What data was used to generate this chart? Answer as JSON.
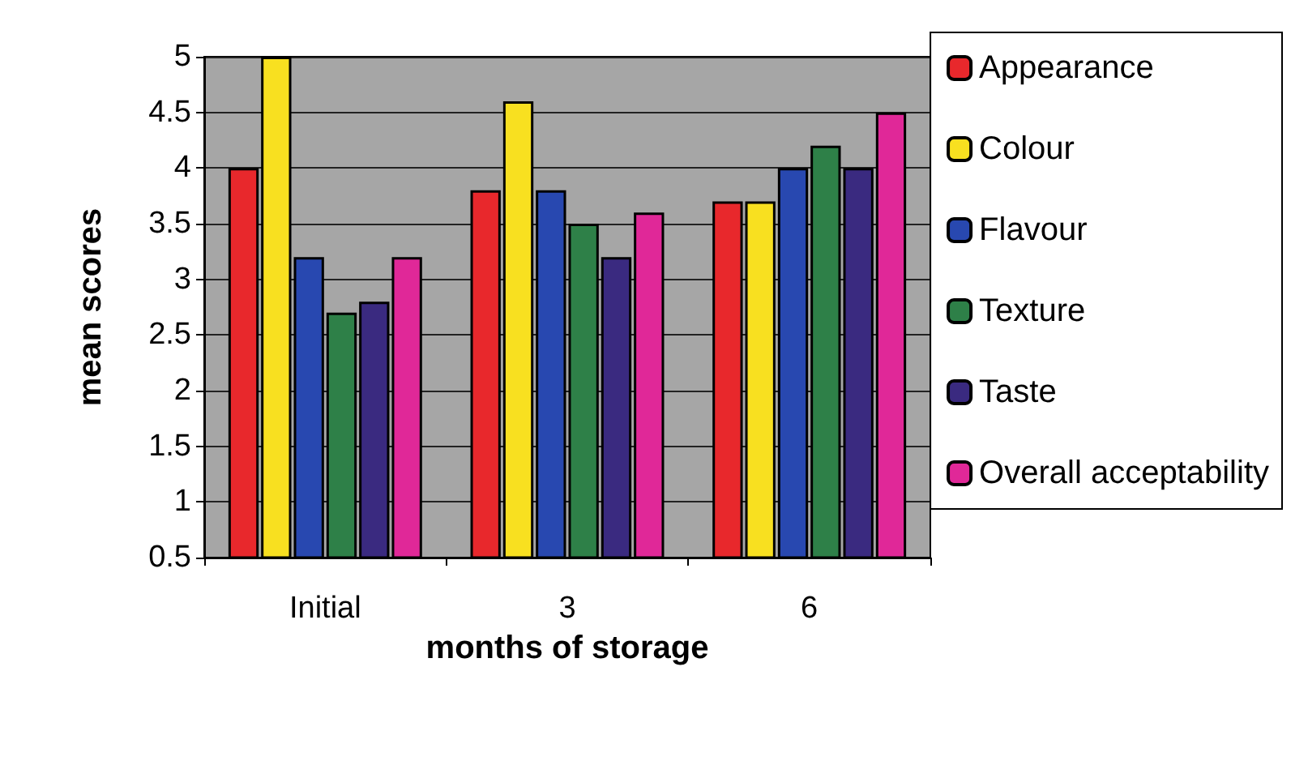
{
  "chart_data": {
    "type": "bar",
    "xlabel": "months of storage",
    "ylabel": "mean scores",
    "categories": [
      "Initial",
      "3",
      "6"
    ],
    "series": [
      {
        "name": "Appearance",
        "color": "#e8282c",
        "values": [
          4.0,
          3.8,
          3.7
        ]
      },
      {
        "name": "Colour",
        "color": "#f8e020",
        "values": [
          5.0,
          4.6,
          3.7
        ]
      },
      {
        "name": "Flavour",
        "color": "#2848b0",
        "values": [
          3.2,
          3.8,
          4.0
        ]
      },
      {
        "name": "Texture",
        "color": "#2e8048",
        "values": [
          2.7,
          3.5,
          4.2
        ]
      },
      {
        "name": "Taste",
        "color": "#3a2a80",
        "values": [
          2.8,
          3.2,
          4.0
        ]
      },
      {
        "name": "Overall acceptability",
        "color": "#e02898",
        "values": [
          3.2,
          3.6,
          4.5
        ]
      }
    ],
    "ylim": [
      0.5,
      5
    ],
    "yticks": [
      0.5,
      1,
      1.5,
      2,
      2.5,
      3,
      3.5,
      4,
      4.5,
      5
    ],
    "grid": "y",
    "legend": "right"
  }
}
